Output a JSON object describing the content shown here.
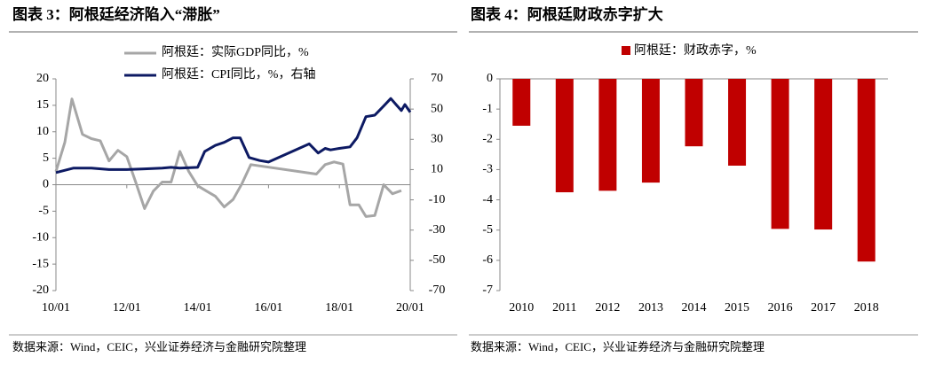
{
  "chart_data": [
    {
      "type": "line",
      "title": "图表 3：阿根廷经济陷入“滞胀”",
      "source": "数据来源：Wind，CEIC，兴业证券经济与金融研究院整理",
      "xlim": [
        2010,
        2020
      ],
      "xticks": [
        {
          "value": 2010,
          "label": "10/01"
        },
        {
          "value": 2012,
          "label": "12/01"
        },
        {
          "value": 2014,
          "label": "14/01"
        },
        {
          "value": 2016,
          "label": "16/01"
        },
        {
          "value": 2018,
          "label": "18/01"
        },
        {
          "value": 2020,
          "label": "20/01"
        }
      ],
      "ylim": [
        -20,
        20
      ],
      "yticks": [
        20,
        15,
        10,
        5,
        0,
        -5,
        -10,
        -15,
        -20
      ],
      "y2lim": [
        -70,
        70
      ],
      "y2ticks": [
        70,
        50,
        30,
        10,
        -10,
        -30,
        -50,
        -70
      ],
      "series": [
        {
          "name": "阿根廷：实际GDP同比，%",
          "color": "#a6a6a6",
          "axis": "y",
          "x": [
            2010.0,
            2010.25,
            2010.45,
            2010.75,
            2011.0,
            2011.25,
            2011.5,
            2011.75,
            2012.0,
            2012.25,
            2012.5,
            2012.75,
            2013.0,
            2013.25,
            2013.5,
            2013.75,
            2014.0,
            2014.25,
            2014.5,
            2014.75,
            2015.0,
            2015.25,
            2015.5,
            2017.35,
            2017.6,
            2017.85,
            2018.1,
            2018.3,
            2018.55,
            2018.75,
            2019.0,
            2019.25,
            2019.5,
            2019.75
          ],
          "values": [
            2.5,
            8,
            16.2,
            9.5,
            8.7,
            8.3,
            4.5,
            6.5,
            5.3,
            0.5,
            -4.5,
            -1.2,
            0.5,
            0.5,
            6.3,
            2.5,
            -0.2,
            -1.2,
            -2.2,
            -4.2,
            -2.8,
            0.2,
            3.8,
            2,
            3.8,
            4.3,
            3.9,
            -3.8,
            -3.8,
            -6,
            -5.8,
            0,
            -1.7,
            -1.1
          ]
        },
        {
          "name": "阿根廷：CPI同比，%，右轴",
          "color": "#0d1a63",
          "axis": "y2",
          "x": [
            2010.0,
            2010.5,
            2011.0,
            2011.5,
            2012.0,
            2012.5,
            2013.0,
            2013.25,
            2013.5,
            2014.0,
            2014.2,
            2014.5,
            2014.75,
            2015.0,
            2015.2,
            2015.45,
            2015.75,
            2016.0,
            2017.15,
            2017.4,
            2017.6,
            2017.75,
            2018.0,
            2018.3,
            2018.5,
            2018.75,
            2019.0,
            2019.25,
            2019.45,
            2019.6,
            2019.75,
            2019.85,
            2020.0
          ],
          "values": [
            8,
            11,
            11,
            10,
            10,
            10.5,
            11,
            11.5,
            11,
            11.5,
            22,
            26,
            28,
            31,
            31,
            18,
            16,
            15,
            27,
            21,
            24,
            23,
            24,
            25,
            31,
            45,
            46,
            52,
            57,
            53,
            49,
            53,
            48
          ]
        }
      ]
    },
    {
      "type": "bar",
      "title": "图表 4：阿根廷财政赤字扩大",
      "source": "数据来源：Wind，CEIC，兴业证券经济与金融研究院整理",
      "categories": [
        "2010",
        "2011",
        "2012",
        "2013",
        "2014",
        "2015",
        "2016",
        "2017",
        "2018"
      ],
      "series": [
        {
          "name": "阿根廷：财政赤字，%",
          "color": "#c00000",
          "values": [
            -1.55,
            -3.75,
            -3.7,
            -3.43,
            -2.23,
            -2.87,
            -4.96,
            -4.98,
            -6.04
          ]
        }
      ],
      "ylim": [
        -7,
        0
      ],
      "yticks": [
        0,
        -1,
        -2,
        -3,
        -4,
        -5,
        -6,
        -7
      ]
    }
  ]
}
